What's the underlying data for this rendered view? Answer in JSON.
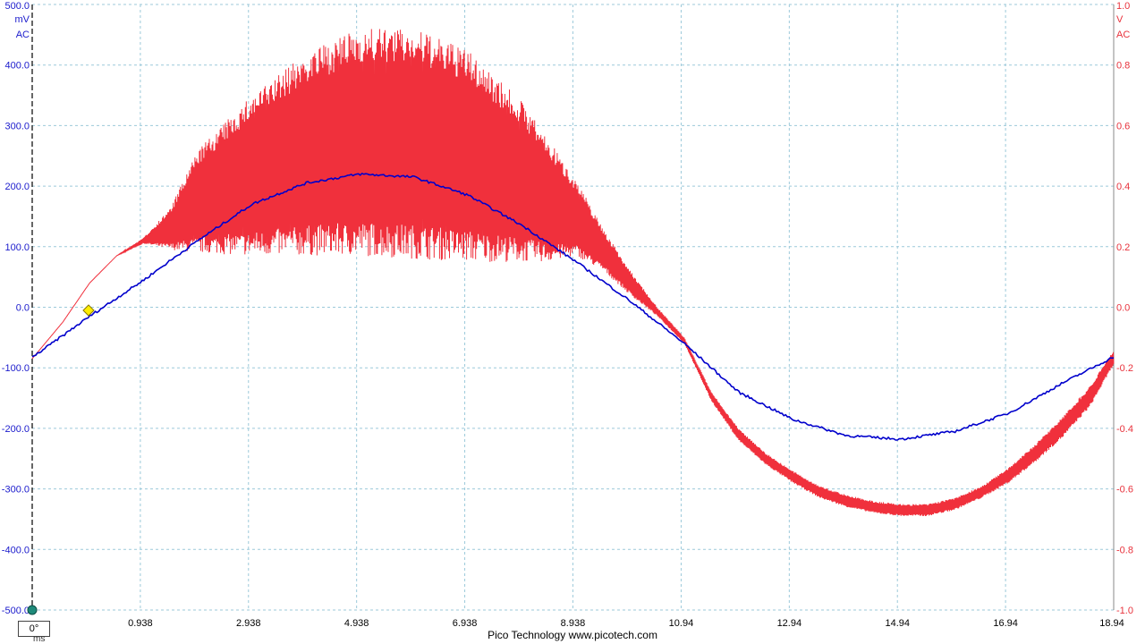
{
  "footer": "Pico Technology  www.picotech.com",
  "trigger_label": "0°",
  "chart_data": {
    "type": "line",
    "x_unit": "ms",
    "xlim": [
      -1.062,
      18.94
    ],
    "x_ticks": [
      "0.938",
      "2.938",
      "4.938",
      "6.938",
      "8.938",
      "10.94",
      "12.94",
      "14.94",
      "16.94",
      "18.94"
    ],
    "grid": true,
    "left_axis": {
      "unit_label": [
        "mV",
        "AC"
      ],
      "color": "#1a1acc",
      "ylim": [
        -500,
        500
      ],
      "ticks": [
        "500.0",
        "400.0",
        "300.0",
        "200.0",
        "100.0",
        "0.0",
        "-100.0",
        "-200.0",
        "-300.0",
        "-400.0",
        "-500.0"
      ]
    },
    "right_axis": {
      "unit_label": [
        "V",
        "AC"
      ],
      "color": "#e8323c",
      "ylim": [
        -1.0,
        1.0
      ],
      "ticks": [
        "1.0",
        "0.8",
        "0.6",
        "0.4",
        "0.2",
        "0.0",
        "-0.2",
        "-0.4",
        "-0.6",
        "-0.8",
        "-1.0"
      ]
    },
    "series": [
      {
        "axis": "left",
        "color": "#0000cc",
        "x": [
          -1.062,
          0.0,
          1.0,
          2.0,
          3.0,
          4.0,
          5.0,
          6.0,
          7.0,
          8.0,
          9.0,
          10.0,
          11.0,
          12.0,
          13.0,
          14.0,
          15.0,
          16.0,
          17.0,
          18.0,
          18.94
        ],
        "values": [
          -83,
          -15,
          45,
          110,
          170,
          205,
          220,
          215,
          185,
          135,
          75,
          10,
          -60,
          -140,
          -185,
          -212,
          -218,
          -205,
          -175,
          -125,
          -82
        ]
      },
      {
        "axis": "right",
        "color": "#f0303c",
        "x": [
          -1.062,
          -0.5,
          0.0,
          0.5,
          1.0,
          1.5,
          2.0,
          3.0,
          4.0,
          5.0,
          6.0,
          7.0,
          8.0,
          8.5,
          9.0,
          9.5,
          10.0,
          10.5,
          11.0,
          11.5,
          12.0,
          12.5,
          13.0,
          13.5,
          14.0,
          14.5,
          15.0,
          15.5,
          16.0,
          16.5,
          17.0,
          17.5,
          18.0,
          18.5,
          18.94
        ],
        "lower": [
          -0.17,
          -0.05,
          0.08,
          0.17,
          0.21,
          0.19,
          0.18,
          0.17,
          0.17,
          0.17,
          0.16,
          0.15,
          0.15,
          0.15,
          0.17,
          0.12,
          0.04,
          -0.03,
          -0.12,
          -0.31,
          -0.44,
          -0.52,
          -0.58,
          -0.63,
          -0.66,
          -0.68,
          -0.69,
          -0.69,
          -0.67,
          -0.63,
          -0.58,
          -0.51,
          -0.43,
          -0.33,
          -0.19
        ],
        "upper": [
          -0.17,
          -0.05,
          0.08,
          0.17,
          0.23,
          0.33,
          0.52,
          0.7,
          0.84,
          0.92,
          0.92,
          0.85,
          0.68,
          0.55,
          0.42,
          0.26,
          0.12,
          0.0,
          -0.1,
          -0.28,
          -0.4,
          -0.48,
          -0.54,
          -0.59,
          -0.62,
          -0.64,
          -0.65,
          -0.65,
          -0.63,
          -0.59,
          -0.53,
          -0.45,
          -0.36,
          -0.26,
          -0.14
        ]
      }
    ]
  }
}
